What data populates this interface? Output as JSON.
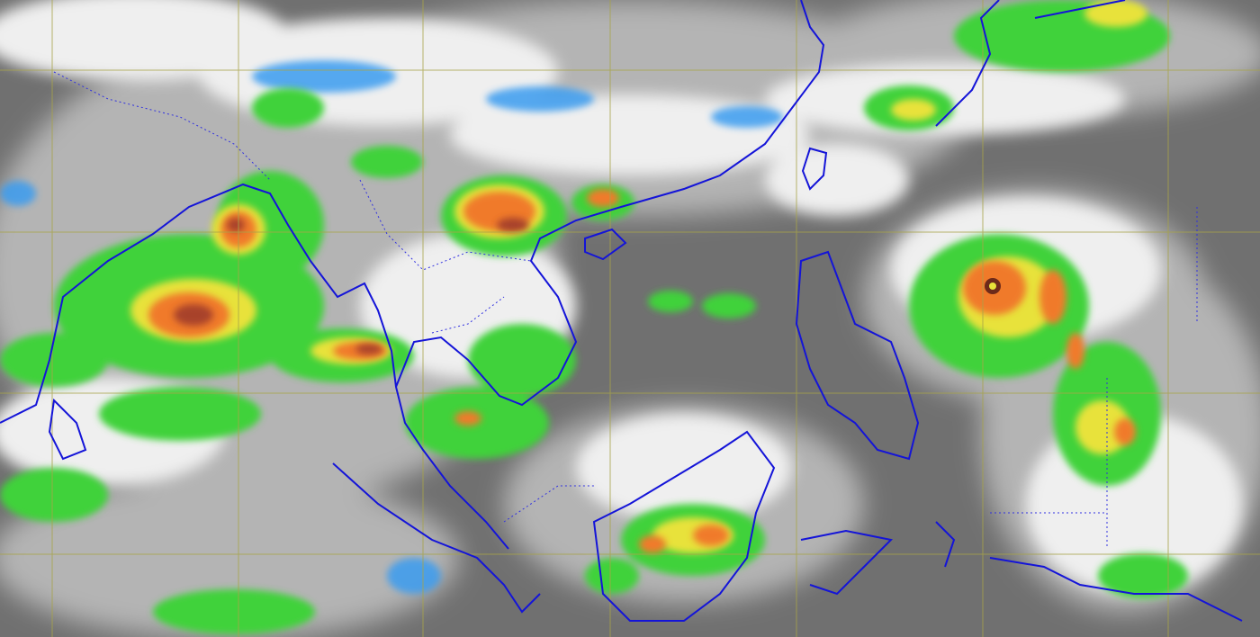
{
  "map": {
    "type": "infrared satellite imagery (enhanced color)",
    "colors": {
      "clear_sky": "#6e6e6e",
      "low_cloud": "#b8b8b8",
      "high_cloud": "#efefef",
      "cold_blue": "#3a9cf0",
      "convection_green": "#3fd23a",
      "convection_yellow": "#e8e23a",
      "convection_orange": "#f07a2a",
      "convection_red": "#a8422a",
      "coastline": "#1414d8",
      "border": "#3030e0",
      "graticule": "#a8a448"
    },
    "features": [
      {
        "name": "typhoon",
        "icon": "cyclone-icon"
      },
      {
        "name": "convection-bay-of-bengal"
      },
      {
        "name": "convection-south-china"
      },
      {
        "name": "convection-borneo"
      }
    ]
  }
}
